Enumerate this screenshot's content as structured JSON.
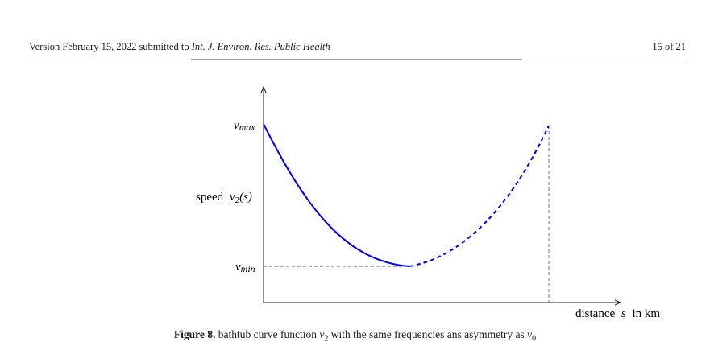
{
  "header": {
    "version_text": "Version February 15, 2022 submitted to",
    "journal": "Int. J. Environ. Res. Public Health",
    "page": "15 of 21"
  },
  "figure": {
    "y_label_word": "speed",
    "y_label_var": "v",
    "y_label_sub": "2",
    "y_label_arg": "(s)",
    "y_tick_top_var": "v",
    "y_tick_top_sub": "max",
    "y_tick_bottom_var": "v",
    "y_tick_bottom_sub": "min",
    "x_label_word": "distance",
    "x_label_var": "s",
    "x_label_unit": "in km"
  },
  "chart_data": {
    "type": "line",
    "title": "",
    "xlabel": "distance s in km",
    "ylabel": "speed v2(s)",
    "y_ticks": [
      "v_max",
      "v_min"
    ],
    "series": [
      {
        "style": "solid",
        "color": "#0000ee",
        "x": [
          0,
          0.5
        ],
        "y": [
          "v_max",
          "v_min"
        ]
      },
      {
        "style": "dashed",
        "color": "#0000ee",
        "x": [
          0.5,
          1.0
        ],
        "y": [
          "v_min",
          "v_max"
        ]
      }
    ],
    "guides": [
      "dashed horizontal line at v_min",
      "dashed vertical line at end of curve"
    ]
  },
  "caption": {
    "label": "Figure 8.",
    "text_before": "bathtub curve function",
    "var": "v",
    "var_sub": "2",
    "text_after": "with the same frequencies ans asymmetry as",
    "ref_var": "v",
    "ref_sub": "0"
  }
}
